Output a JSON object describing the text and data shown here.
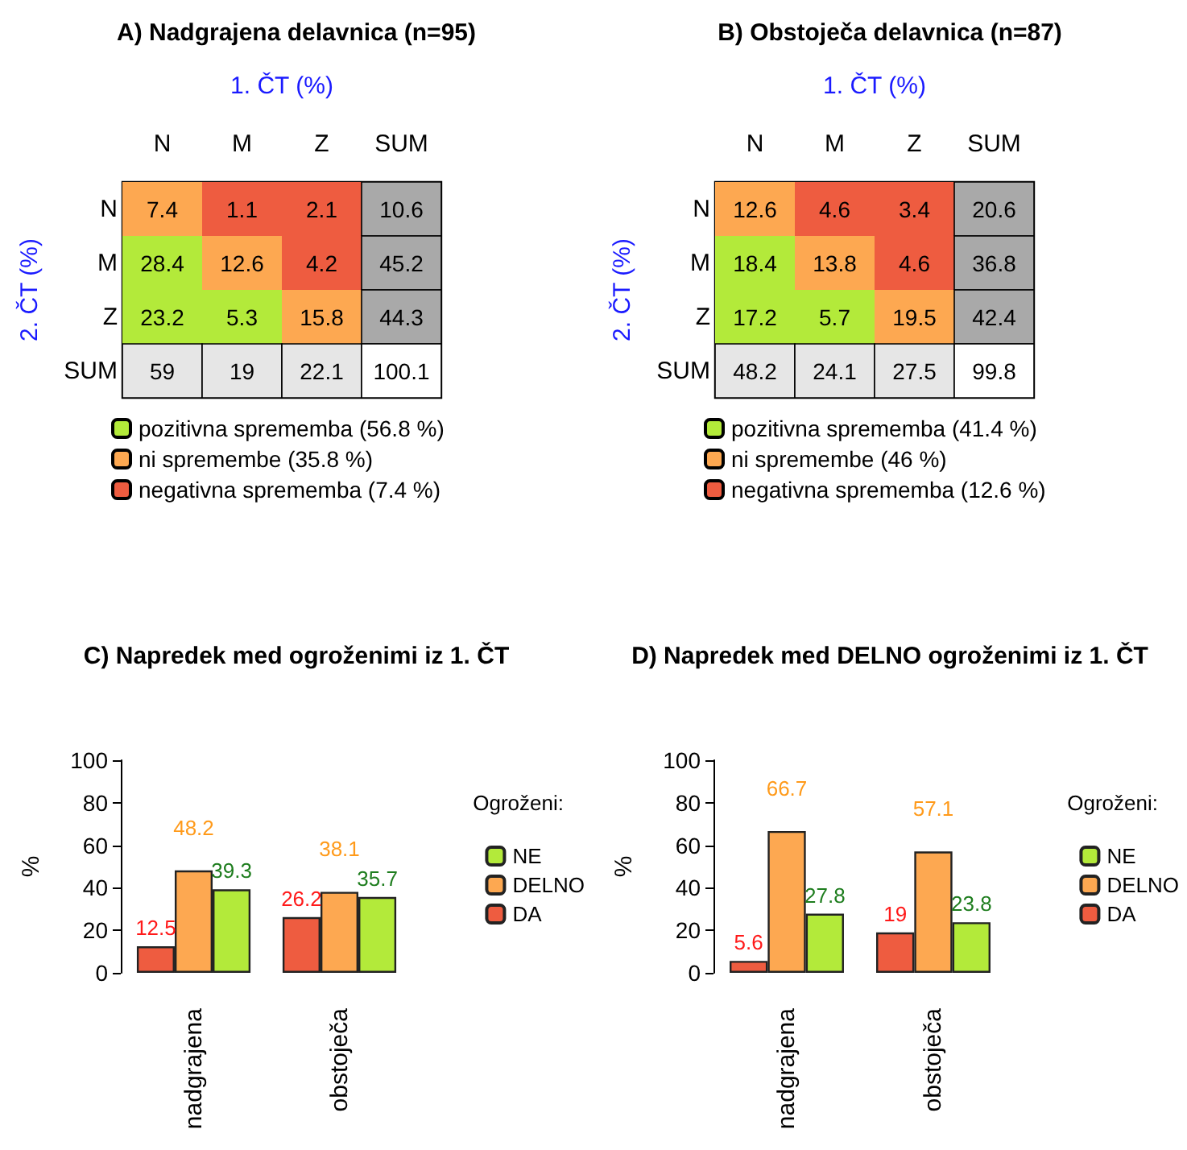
{
  "chart_data": [
    {
      "type": "heatmap",
      "title": "A) Nadgrajena delavnica (n=95)",
      "xlabel": "1. ČT (%)",
      "ylabel": "2. ČT (%)",
      "categories": [
        "N",
        "M",
        "Z",
        "SUM"
      ],
      "y_categories": [
        "N",
        "M",
        "Z",
        "SUM"
      ],
      "cells": [
        [
          7.4,
          1.1,
          2.1,
          10.6
        ],
        [
          28.4,
          12.6,
          4.2,
          45.2
        ],
        [
          23.2,
          5.3,
          15.8,
          44.3
        ],
        [
          59,
          19,
          22.1,
          100.1
        ]
      ],
      "data_labels": true,
      "legend": "bottom",
      "series": [
        {
          "name": "pozitivna sprememba (56.8 %)",
          "color": "#b3ea3a",
          "values": [
            null,
            null,
            null,
            null
          ]
        },
        {
          "name": "ni spremembe (35.8 %)",
          "color": "#fda851",
          "values": [
            null,
            null,
            null,
            null
          ]
        },
        {
          "name": "negativna sprememba (7.4 %)",
          "color": "#ee5c40",
          "values": [
            null,
            null,
            null,
            null
          ]
        }
      ]
    },
    {
      "type": "heatmap",
      "title": "B) Obstoječa delavnica (n=87)",
      "xlabel": "1. ČT (%)",
      "ylabel": "2. ČT (%)",
      "categories": [
        "N",
        "M",
        "Z",
        "SUM"
      ],
      "y_categories": [
        "N",
        "M",
        "Z",
        "SUM"
      ],
      "cells": [
        [
          12.6,
          4.6,
          3.4,
          20.6
        ],
        [
          18.4,
          13.8,
          4.6,
          36.8
        ],
        [
          17.2,
          5.7,
          19.5,
          42.4
        ],
        [
          48.2,
          24.1,
          27.5,
          99.8
        ]
      ],
      "data_labels": true,
      "legend": "bottom",
      "series": [
        {
          "name": "pozitivna sprememba (41.4 %)",
          "color": "#b3ea3a",
          "values": [
            null,
            null,
            null,
            null
          ]
        },
        {
          "name": "ni spremembe (46 %)",
          "color": "#fda851",
          "values": [
            null,
            null,
            null,
            null
          ]
        },
        {
          "name": "negativna sprememba (12.6 %)",
          "color": "#ee5c40",
          "values": [
            null,
            null,
            null,
            null
          ]
        }
      ]
    },
    {
      "type": "bar",
      "title": "C) Napredek med ogroženimi iz 1. ČT",
      "ylabel": "%",
      "legend_title": "Ogroženi:",
      "legend": "right",
      "categories": [
        "nadgrajena",
        "obstoječa"
      ],
      "ylim": [
        0,
        100
      ],
      "yticks": [
        0,
        20,
        40,
        60,
        80,
        100
      ],
      "data_labels": true,
      "series": [
        {
          "name": "DA",
          "color": "#ee5c40",
          "values": [
            12.5,
            26.2
          ]
        },
        {
          "name": "DELNO",
          "color": "#fda851",
          "values": [
            48.2,
            38.1
          ]
        },
        {
          "name": "NE",
          "color": "#b3ea3a",
          "values": [
            39.3,
            35.7
          ]
        }
      ]
    },
    {
      "type": "bar",
      "title": "D) Napredek med DELNO ogroženimi iz 1. ČT",
      "ylabel": "%",
      "legend_title": "Ogroženi:",
      "legend": "right",
      "categories": [
        "nadgrajena",
        "obstoječa"
      ],
      "ylim": [
        0,
        100
      ],
      "yticks": [
        0,
        20,
        40,
        60,
        80,
        100
      ],
      "data_labels": true,
      "series": [
        {
          "name": "DA",
          "color": "#ee5c40",
          "values": [
            5.6,
            19
          ]
        },
        {
          "name": "DELNO",
          "color": "#fda851",
          "values": [
            66.7,
            57.1
          ]
        },
        {
          "name": "NE",
          "color": "#b3ea3a",
          "values": [
            27.8,
            23.8
          ]
        }
      ]
    }
  ]
}
